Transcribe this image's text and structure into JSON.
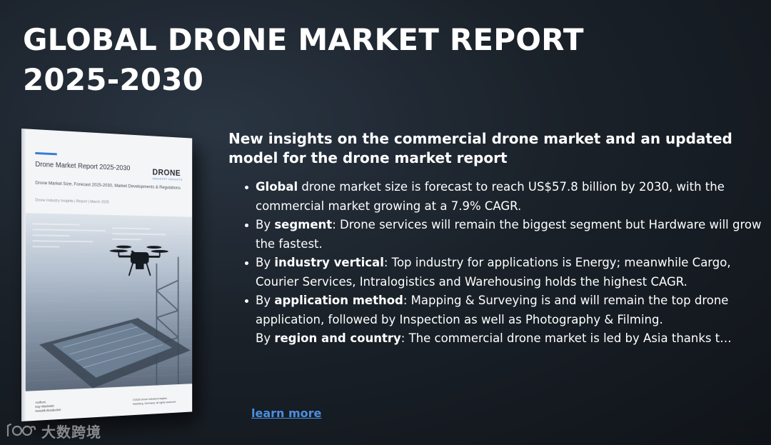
{
  "page": {
    "title": "GLOBAL DRONE MARKET REPORT 2025-2030"
  },
  "report_cover": {
    "title": "Drone Market Report 2025-2030",
    "logo_main": "DRONE",
    "logo_sub": "INDUSTRY INSIGHTS",
    "subtitle": "Drone Market Size, Forecast 2025-2030, Market Developments & Regulations",
    "meta": "Drone Industry Insights  |  Report  |  March 2025",
    "authors_label": "Authors",
    "author_1": "Kay Wackwitz",
    "author_2": "Hendrik Boedecker",
    "copyright_1": "©2025 Drone Industry Insights,",
    "copyright_2": "Hamburg, Germany, all rights reserved"
  },
  "content": {
    "heading": "New insights on the commercial drone market and an updated model for the drone market report",
    "bullets": [
      {
        "prefix": "",
        "bold": "Global",
        "text": " drone market size is forecast to reach US$57.8 billion by 2030, with the commercial market growing at a 7.9% CAGR."
      },
      {
        "prefix": "By ",
        "bold": "segment",
        "text": ": Drone services will remain the biggest segment but Hardware will grow the fastest."
      },
      {
        "prefix": "By ",
        "bold": "industry vertical",
        "text": ": Top industry for applications is Energy; meanwhile Cargo, Courier Services, Intralogistics and Warehousing holds the highest CAGR."
      },
      {
        "prefix": "By ",
        "bold": "application method",
        "text": ": Mapping & Surveying is and will remain the top drone application, followed by Inspection as well as Photography & Filming."
      },
      {
        "prefix": "By ",
        "bold": "region and country",
        "text": ": The commercial drone market is led by Asia thanks t…"
      }
    ],
    "learn_more_label": "learn more"
  },
  "watermark": {
    "text": "大数跨境",
    "icon": "brand-logo-icon"
  },
  "colors": {
    "background": "#1a2129",
    "link": "#4a8fe0",
    "accent": "#3a7bd5"
  }
}
